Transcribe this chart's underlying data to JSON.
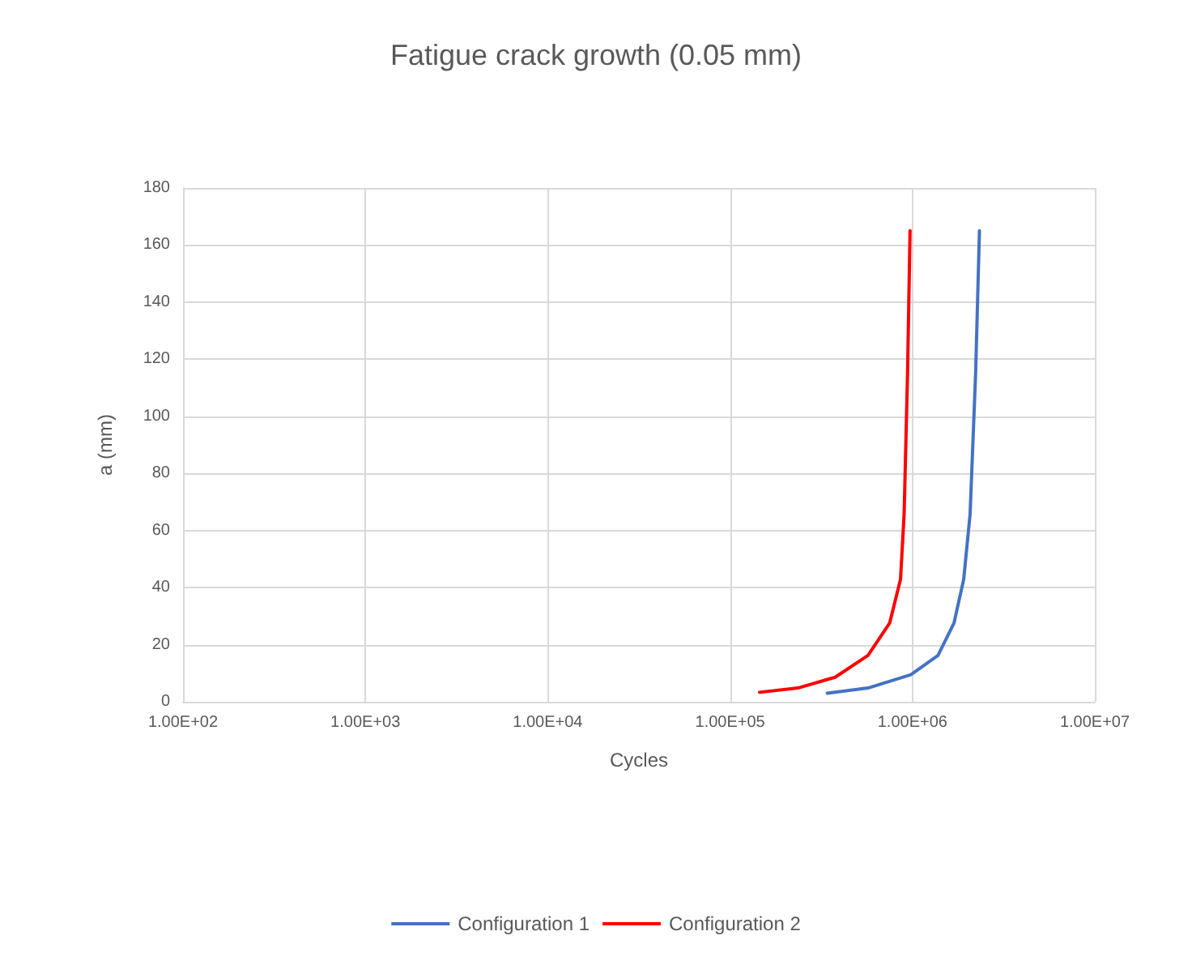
{
  "chart_data": {
    "type": "line",
    "title": "Fatigue crack growth (0.05 mm)",
    "xlabel": "Cycles",
    "ylabel": "a (mm)",
    "log": "x",
    "grid": true,
    "legend": "bottom",
    "marker": "none",
    "line_style": "solid",
    "xlim": [
      100,
      10000000
    ],
    "xticks": [
      {
        "value": 100,
        "label": "1.00E+02"
      },
      {
        "value": 1000,
        "label": "1.00E+03"
      },
      {
        "value": 10000,
        "label": "1.00E+04"
      },
      {
        "value": 100000,
        "label": "1.00E+05"
      },
      {
        "value": 1000000,
        "label": "1.00E+06"
      },
      {
        "value": 10000000,
        "label": "1.00E+07"
      }
    ],
    "ylim": [
      0,
      180
    ],
    "yticks": [
      0,
      20,
      40,
      60,
      80,
      100,
      120,
      140,
      160,
      180
    ],
    "series": [
      {
        "name": "Configuration 1",
        "color": "#4472c4",
        "x": [
          341000,
          570000,
          980000,
          1380000,
          1690000,
          1910000,
          2070000,
          2220000,
          2330000
        ],
        "values": [
          3,
          4.8,
          9.5,
          16.2,
          27.6,
          42.9,
          65.7,
          115,
          165
        ]
      },
      {
        "name": "Configuration 2",
        "color": "#ff0000",
        "x": [
          145000,
          235000,
          377000,
          570000,
          750000,
          860000,
          900000,
          940000,
          970000
        ],
        "values": [
          3.3,
          4.8,
          8.6,
          16.2,
          27.6,
          42.9,
          65.7,
          115,
          165
        ]
      }
    ]
  }
}
